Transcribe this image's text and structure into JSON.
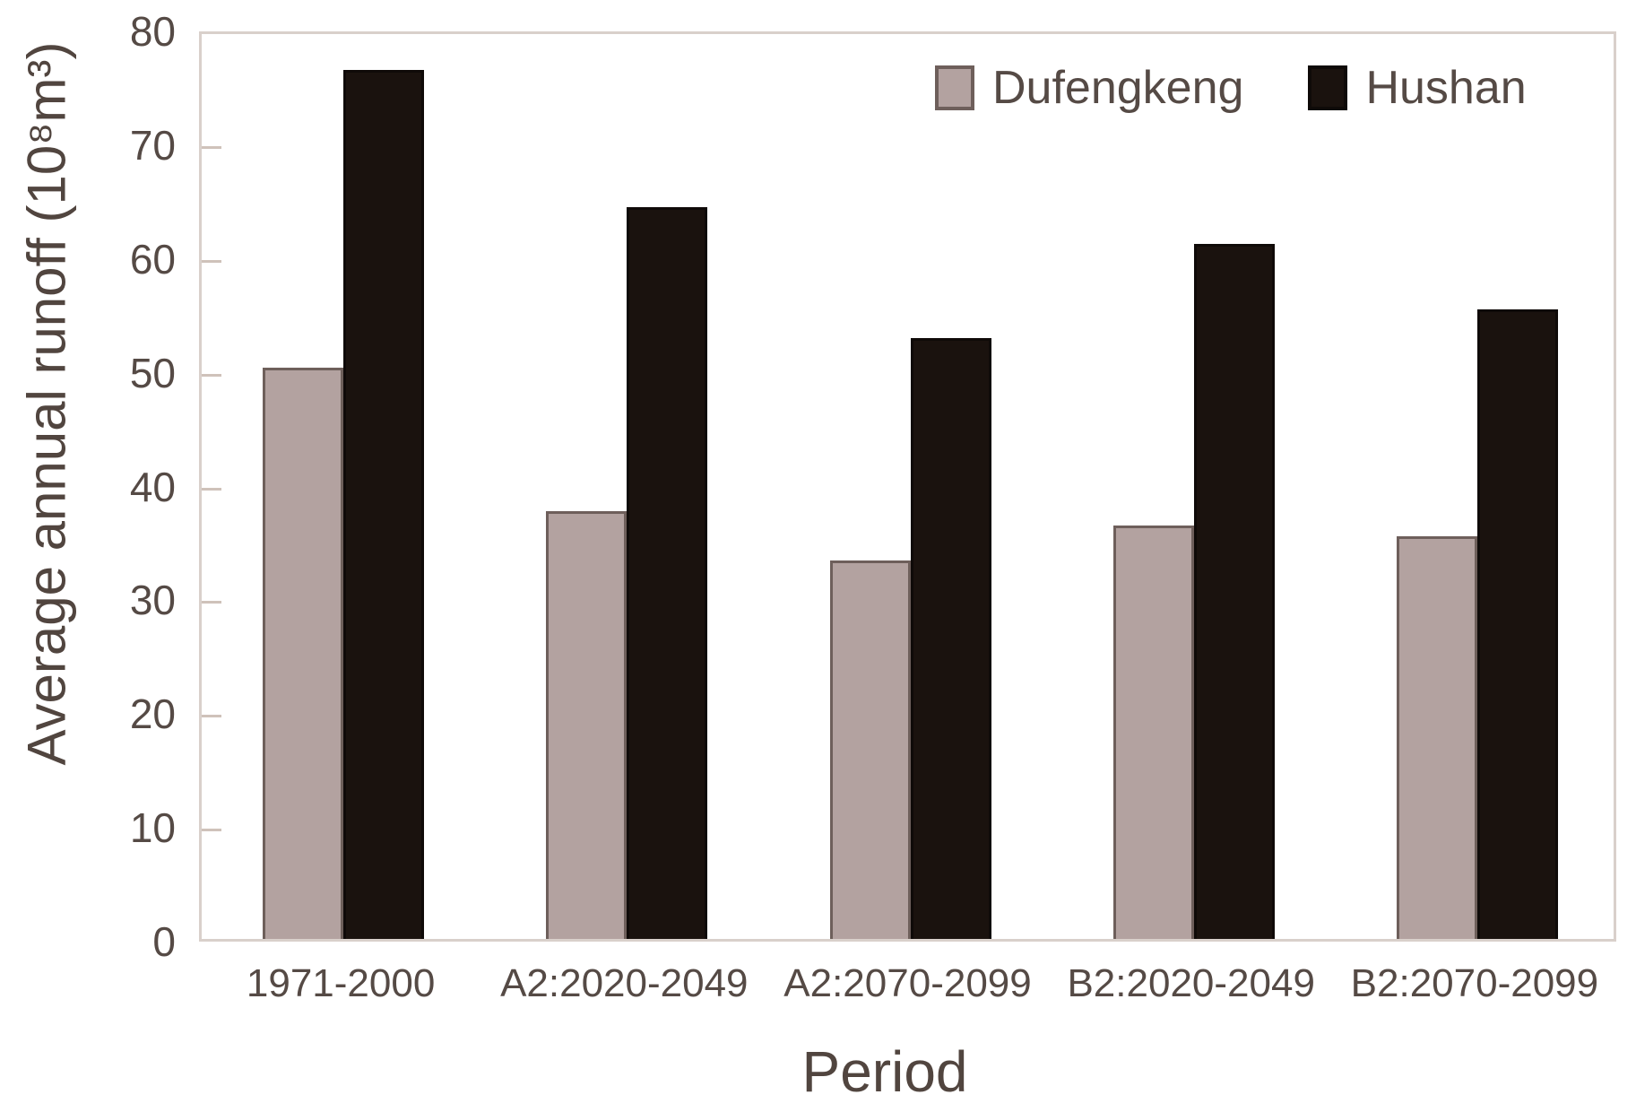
{
  "chart_data": {
    "type": "bar",
    "title": "",
    "categories": [
      "1971-2000",
      "A2:2020-2049",
      "A2:2070-2099",
      "B2:2020-2049",
      "B2:2070-2099"
    ],
    "series": [
      {
        "name": "Dufengkeng",
        "color": "#b3a2a0",
        "border_color": "#6e5f5b",
        "values": [
          50.2,
          37.6,
          33.3,
          36.3,
          35.4
        ]
      },
      {
        "name": "Hushan",
        "color": "#1a120e",
        "border_color": "#0f0a08",
        "values": [
          76.4,
          64.3,
          52.8,
          61.1,
          55.3
        ]
      }
    ],
    "xlabel": "Period",
    "ylabel": "Average annual runoff (10⁸m³)",
    "ylim": [
      0,
      80
    ],
    "ytick_step": 10,
    "yticks": [
      0,
      10,
      20,
      30,
      40,
      50,
      60,
      70,
      80
    ],
    "grid": false,
    "legend_position": "top-right",
    "axis_color": "#d9d0cb",
    "text_color": "#554a45"
  }
}
